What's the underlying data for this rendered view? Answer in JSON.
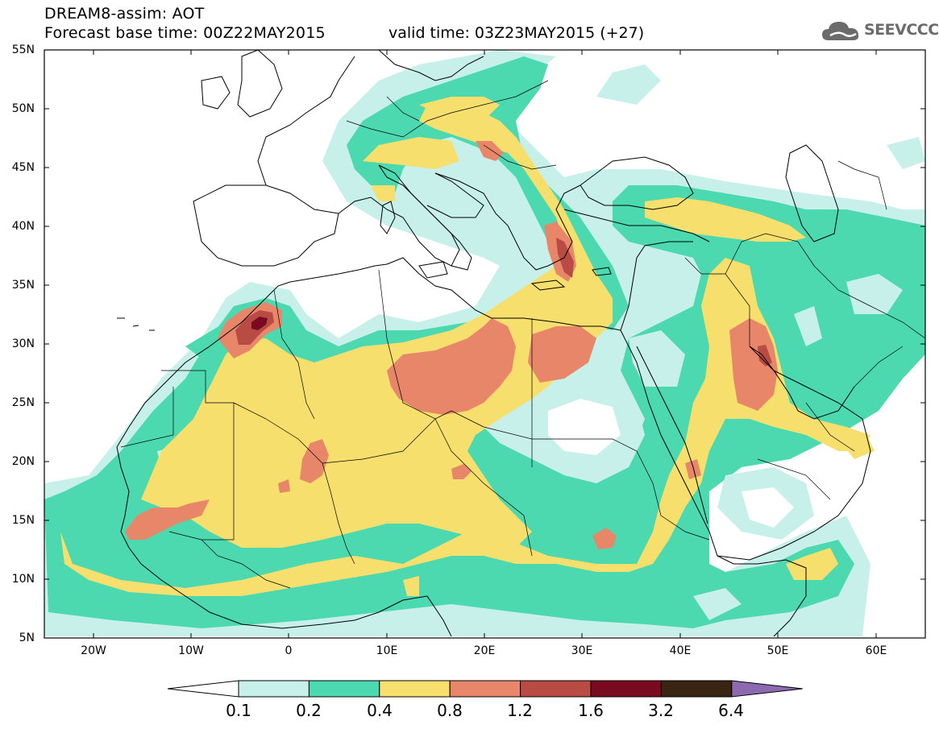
{
  "header": {
    "line1": "DREAM8-assim: AOT",
    "line2": "Forecast base time: 00Z22MAY2015",
    "valid": "valid time: 03Z23MAY2015 (+27)",
    "logo_text": "SEEVCCC"
  },
  "axes": {
    "lat_labels": [
      "55N",
      "50N",
      "45N",
      "40N",
      "35N",
      "30N",
      "25N",
      "20N",
      "15N",
      "10N",
      "5N"
    ],
    "lon_labels": [
      "20W",
      "10W",
      "0",
      "10E",
      "20E",
      "30E",
      "40E",
      "50E",
      "60E"
    ],
    "lat_range": [
      5,
      55
    ],
    "lon_range": [
      -25,
      65
    ]
  },
  "legend": {
    "levels": [
      "0.1",
      "0.2",
      "0.4",
      "0.8",
      "1.2",
      "1.6",
      "3.2",
      "6.4"
    ],
    "colors": [
      "#ffffff",
      "#c8f0ea",
      "#4dd9b0",
      "#f7df6e",
      "#e8866a",
      "#b84c45",
      "#7a0a20",
      "#3a2414",
      "#8d6ab0"
    ]
  },
  "colors": {
    "c1": "#c8f0ea",
    "c2": "#4dd9b0",
    "c3": "#f7df6e",
    "c4": "#e8866a",
    "c5": "#b84c45",
    "c6": "#7a0a20"
  }
}
